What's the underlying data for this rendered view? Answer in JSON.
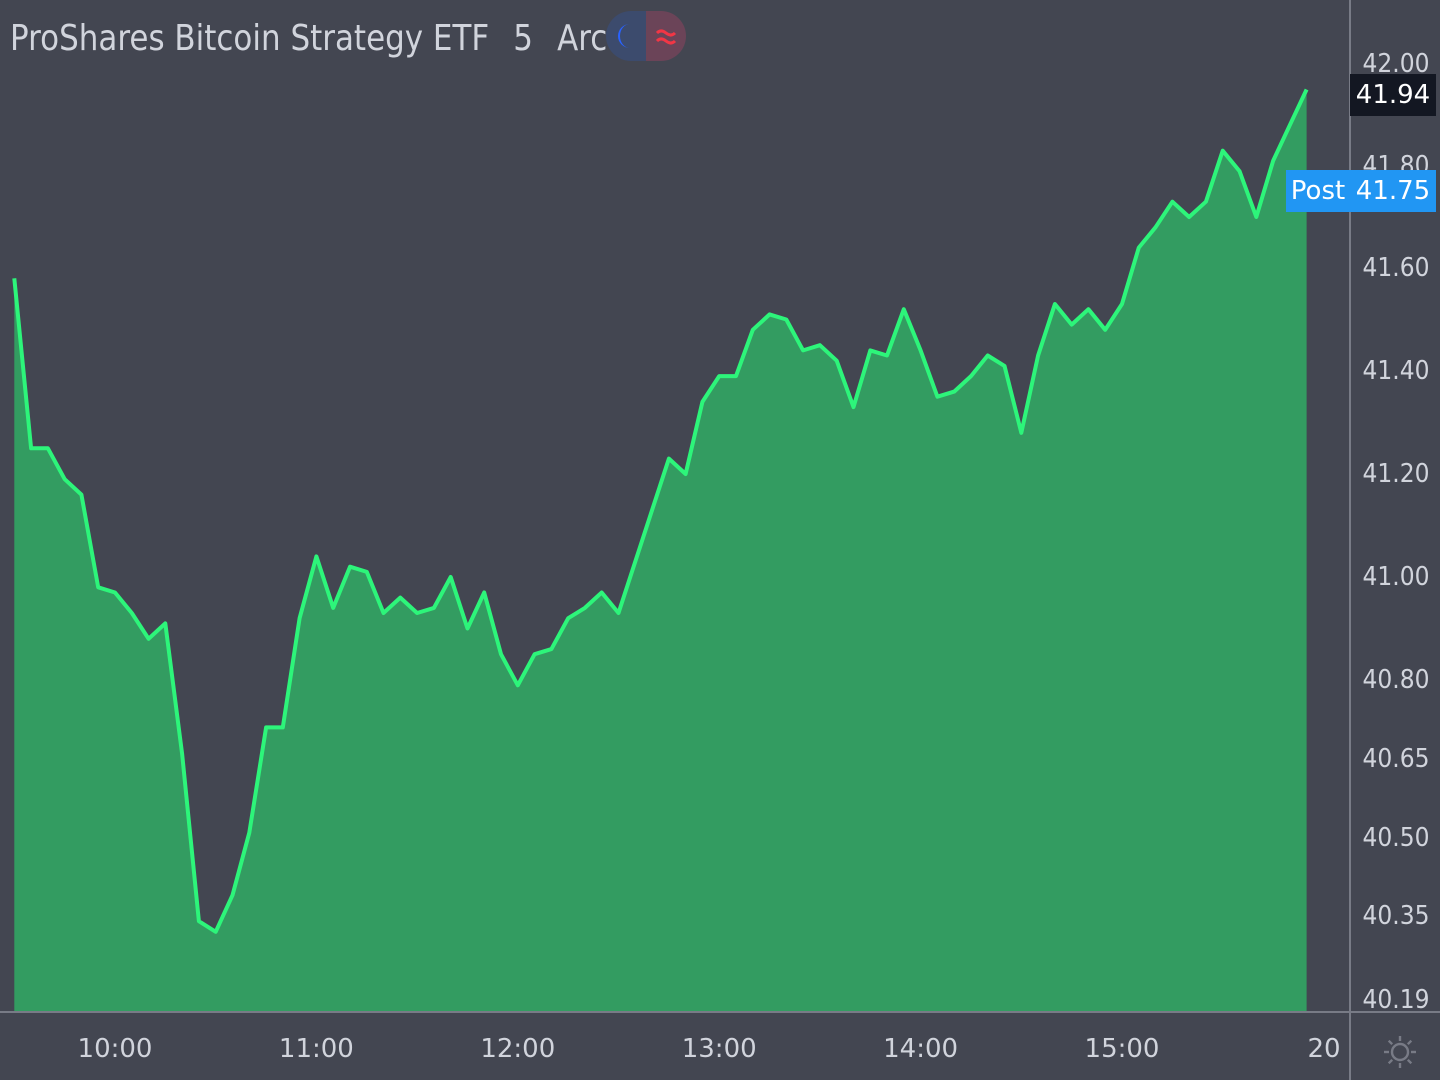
{
  "header": {
    "symbol_name": "ProShares Bitcoin Strategy ETF",
    "interval": "5",
    "exchange": "Arca",
    "session_icon": "moon-icon",
    "alert_icon": "approx-icon"
  },
  "colors": {
    "background": "#434651",
    "line": "#2df57a",
    "area": "#339c61",
    "axis_text": "#d1d4dc",
    "last_price_bg": "#131722",
    "post_bg": "#2196f3",
    "session_icon": "#2962ff",
    "alert_icon": "#f23645"
  },
  "price_axis": {
    "last_price": "41.94",
    "post_label": "Post",
    "post_price": "41.75"
  },
  "time_axis": {
    "settings_icon": "gear-icon"
  },
  "chart_data": {
    "type": "area",
    "title": "ProShares Bitcoin Strategy ETF",
    "xlabel": "",
    "ylabel": "",
    "ylim": [
      40.19,
      42.0
    ],
    "y_ticks": [
      42.0,
      41.8,
      41.6,
      41.4,
      41.2,
      41.0,
      40.8,
      40.65,
      40.5,
      40.35,
      40.19
    ],
    "y_tick_labels": [
      "42.00",
      "41.80",
      "41.60",
      "41.40",
      "41.20",
      "41.00",
      "40.80",
      "40.65",
      "40.50",
      "40.35",
      "40.19"
    ],
    "x_tick_labels": [
      "10:00",
      "11:00",
      "12:00",
      "13:00",
      "14:00",
      "15:00",
      "20"
    ],
    "x_tick_minutes": [
      600,
      660,
      720,
      780,
      840,
      900,
      960
    ],
    "xlim_minutes": [
      570,
      965
    ],
    "grid": false,
    "last_price": 41.94,
    "post_market_price": 41.75,
    "series": [
      {
        "minutes": [
          570,
          575,
          580,
          585,
          590,
          595,
          600,
          605,
          610,
          615,
          620,
          625,
          630,
          635,
          640,
          645,
          650,
          655,
          660,
          665,
          670,
          675,
          680,
          685,
          690,
          695,
          700,
          705,
          710,
          715,
          720,
          725,
          730,
          735,
          740,
          745,
          750,
          755,
          760,
          765,
          770,
          775,
          780,
          785,
          790,
          795,
          800,
          805,
          810,
          815,
          820,
          825,
          830,
          835,
          840,
          845,
          850,
          855,
          860,
          865,
          870,
          875,
          880,
          885,
          890,
          895,
          900,
          905,
          910,
          915,
          920,
          925,
          930,
          935,
          940,
          945,
          950,
          955
        ],
        "values": [
          41.58,
          41.25,
          41.25,
          41.19,
          41.16,
          40.98,
          40.97,
          40.93,
          40.88,
          40.91,
          40.66,
          40.34,
          40.32,
          40.39,
          40.51,
          40.71,
          40.71,
          40.92,
          41.04,
          40.94,
          41.02,
          41.01,
          40.93,
          40.96,
          40.93,
          40.94,
          41.0,
          40.9,
          40.97,
          40.85,
          40.79,
          40.85,
          40.86,
          40.92,
          40.94,
          40.97,
          40.93,
          41.03,
          41.13,
          41.23,
          41.2,
          41.34,
          41.39,
          41.39,
          41.48,
          41.51,
          41.5,
          41.44,
          41.45,
          41.42,
          41.33,
          41.44,
          41.43,
          41.52,
          41.44,
          41.35,
          41.36,
          41.39,
          41.43,
          41.41,
          41.28,
          41.43,
          41.53,
          41.49,
          41.52,
          41.48,
          41.53,
          41.64,
          41.68,
          41.73,
          41.7,
          41.73,
          41.83,
          41.79,
          41.7,
          41.81,
          41.88,
          41.95
        ]
      }
    ]
  }
}
